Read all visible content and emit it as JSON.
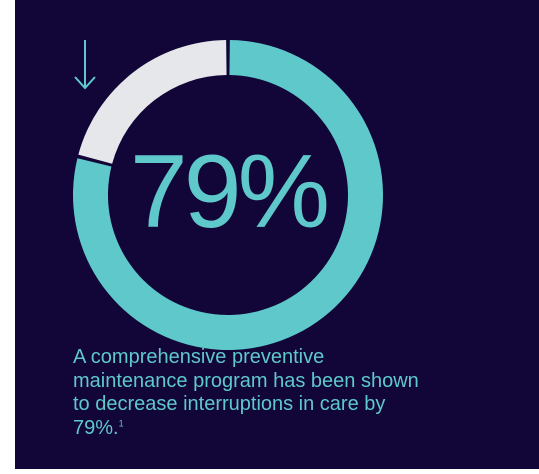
{
  "chart_data": {
    "type": "pie",
    "variant": "donut",
    "values": [
      79,
      21
    ],
    "colors": [
      "#5ec8cb",
      "#e6e7eb"
    ],
    "value_label": "79%",
    "title": "",
    "annotations": [
      "arrow-down"
    ]
  },
  "caption": {
    "text": "A comprehensive preventive maintenance program has been shown to decrease interruptions in care by 79%.",
    "footnote": "1"
  },
  "colors": {
    "background": "#120538",
    "accent": "#5ec8cb",
    "remainder": "#e6e7eb"
  }
}
